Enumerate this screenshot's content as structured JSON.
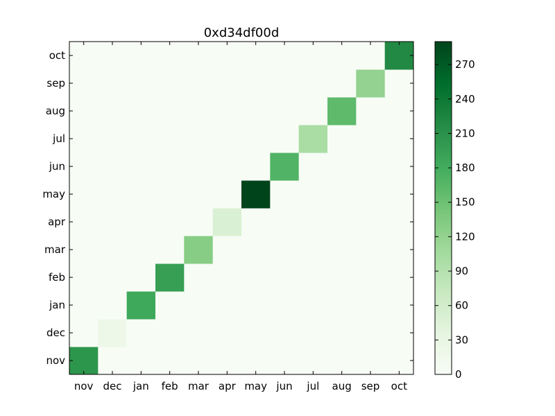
{
  "chart_data": {
    "type": "heatmap",
    "title": "0xd34df00d",
    "x_categories": [
      "nov",
      "dec",
      "jan",
      "feb",
      "mar",
      "apr",
      "may",
      "jun",
      "jul",
      "aug",
      "sep",
      "oct"
    ],
    "y_categories": [
      "nov",
      "dec",
      "jan",
      "feb",
      "mar",
      "apr",
      "may",
      "jun",
      "jul",
      "aug",
      "sep",
      "oct"
    ],
    "values": [
      [
        205,
        0,
        0,
        0,
        0,
        0,
        0,
        0,
        0,
        0,
        0,
        0
      ],
      [
        0,
        20,
        0,
        0,
        0,
        0,
        0,
        0,
        0,
        0,
        0,
        0
      ],
      [
        0,
        0,
        185,
        0,
        0,
        0,
        0,
        0,
        0,
        0,
        0,
        0
      ],
      [
        0,
        0,
        0,
        195,
        0,
        0,
        0,
        0,
        0,
        0,
        0,
        0
      ],
      [
        0,
        0,
        0,
        0,
        130,
        0,
        0,
        0,
        0,
        0,
        0,
        0
      ],
      [
        0,
        0,
        0,
        0,
        0,
        50,
        0,
        0,
        0,
        0,
        0,
        0
      ],
      [
        0,
        0,
        0,
        0,
        0,
        0,
        290,
        0,
        0,
        0,
        0,
        0
      ],
      [
        0,
        0,
        0,
        0,
        0,
        0,
        0,
        170,
        0,
        0,
        0,
        0
      ],
      [
        0,
        0,
        0,
        0,
        0,
        0,
        0,
        0,
        100,
        0,
        0,
        0
      ],
      [
        0,
        0,
        0,
        0,
        0,
        0,
        0,
        0,
        0,
        160,
        0,
        0
      ],
      [
        0,
        0,
        0,
        0,
        0,
        0,
        0,
        0,
        0,
        0,
        120,
        0
      ],
      [
        0,
        0,
        0,
        0,
        0,
        0,
        0,
        0,
        0,
        0,
        0,
        220
      ]
    ],
    "colorbar": {
      "vmin": 0,
      "vmax": 290,
      "ticks": [
        0,
        30,
        60,
        90,
        120,
        150,
        180,
        210,
        240,
        270
      ],
      "colormap": "Greens"
    },
    "y_order": "bottom-to-top"
  }
}
